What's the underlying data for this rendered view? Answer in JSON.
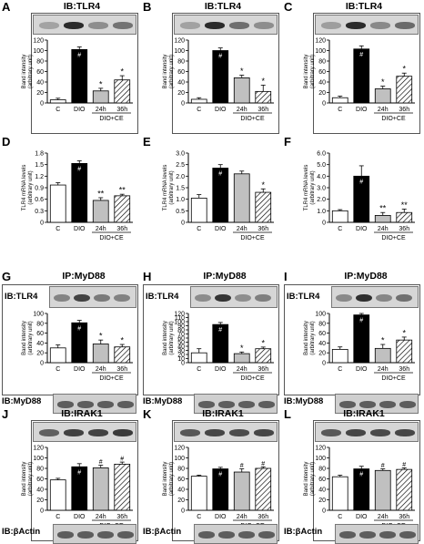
{
  "figure_labels": {
    "dio_ce": "DIO+CE",
    "ylabel_band": "Band intensity (arbitrary unit)",
    "ylabel_mrna": "TLR4 mRNA levels (arbitrary unit)",
    "ib_myd88": "IB:MyD88",
    "ib_bactin": "IB:βActin"
  },
  "colors": {
    "C": "#ffffff",
    "DIO": "#000000",
    "24h": "#c0c0c0",
    "36h": "hatched"
  },
  "chart_data": [
    {
      "panel": "A",
      "type": "bar",
      "title": "IB:TLR4",
      "categories": [
        "C",
        "DIO",
        "24h",
        "36h"
      ],
      "values": [
        6,
        102,
        23,
        44
      ],
      "errors": [
        3,
        5,
        5,
        8
      ],
      "marks": [
        "",
        "#",
        "*",
        "*"
      ],
      "ylim": [
        0,
        120
      ],
      "yticks": [
        0,
        20,
        40,
        60,
        80,
        100,
        120
      ],
      "ytick_labels": [
        "0",
        "20",
        "40",
        "60",
        "80",
        "100",
        "120"
      ],
      "ylabel": "Band intensity (arbitrary unit)"
    },
    {
      "panel": "B",
      "type": "bar",
      "title": "IB:TLR4",
      "categories": [
        "C",
        "DIO",
        "24h",
        "36h"
      ],
      "values": [
        7,
        100,
        48,
        22
      ],
      "errors": [
        3,
        5,
        5,
        12
      ],
      "marks": [
        "",
        "#",
        "*",
        "*"
      ],
      "ylim": [
        0,
        120
      ],
      "yticks": [
        0,
        20,
        40,
        60,
        80,
        100,
        120
      ],
      "ytick_labels": [
        "0",
        "20",
        "40",
        "60",
        "80",
        "100",
        "120"
      ],
      "ylabel": "Band intensity (arbitrary unit)"
    },
    {
      "panel": "C",
      "type": "bar",
      "title": "IB:TLR4",
      "categories": [
        "C",
        "DIO",
        "24h",
        "36h"
      ],
      "values": [
        10,
        103,
        27,
        51
      ],
      "errors": [
        3,
        6,
        5,
        6
      ],
      "marks": [
        "",
        "#",
        "*",
        "*"
      ],
      "ylim": [
        0,
        120
      ],
      "yticks": [
        0,
        20,
        40,
        60,
        80,
        100,
        120
      ],
      "ytick_labels": [
        "0",
        "20",
        "40",
        "60",
        "80",
        "100",
        "120"
      ],
      "ylabel": "Band intensity (arbitrary unit)"
    },
    {
      "panel": "D",
      "type": "bar",
      "title": "",
      "categories": [
        "C",
        "DIO",
        "24h",
        "36h"
      ],
      "values": [
        0.97,
        1.53,
        0.57,
        0.69
      ],
      "errors": [
        0.06,
        0.07,
        0.07,
        0.04
      ],
      "marks": [
        "",
        "#",
        "**",
        "**"
      ],
      "ylim": [
        0,
        1.8
      ],
      "yticks": [
        0,
        0.3,
        0.6,
        0.9,
        1.2,
        1.5,
        1.8
      ],
      "ytick_labels": [
        "0",
        "0.3",
        "0.6",
        "0.9",
        "1.2",
        "1.5",
        "1.8"
      ],
      "ylabel": "TLR4 mRNA levels (arbitrary unit)"
    },
    {
      "panel": "E",
      "type": "bar",
      "title": "",
      "categories": [
        "C",
        "DIO",
        "24h",
        "36h"
      ],
      "values": [
        1.05,
        2.35,
        2.1,
        1.3
      ],
      "errors": [
        0.15,
        0.15,
        0.12,
        0.15
      ],
      "marks": [
        "",
        "#",
        "",
        "*"
      ],
      "ylim": [
        0,
        3.0
      ],
      "yticks": [
        0,
        0.5,
        1.0,
        1.5,
        2.0,
        2.5,
        3.0
      ],
      "ytick_labels": [
        "0",
        "0.5",
        "1.0",
        "1.5",
        "2.0",
        "2.5",
        "3.0"
      ],
      "ylabel": "TLR4 mRNA levels (arbitrary unit)"
    },
    {
      "panel": "F",
      "type": "bar",
      "title": "",
      "categories": [
        "C",
        "DIO",
        "24h",
        "36h"
      ],
      "values": [
        1.0,
        4.0,
        0.6,
        0.85
      ],
      "errors": [
        0.1,
        0.9,
        0.25,
        0.3
      ],
      "marks": [
        "",
        "#",
        "**",
        "**"
      ],
      "ylim": [
        0,
        6.0
      ],
      "yticks": [
        0,
        1.0,
        2.0,
        3.0,
        4.0,
        5.0,
        6.0
      ],
      "ytick_labels": [
        "0",
        "1.0",
        "2.0",
        "3.0",
        "4.0",
        "5.0",
        "6.0"
      ],
      "ylabel": "TLR4 mRNA levels (arbitrary unit)"
    },
    {
      "panel": "G",
      "type": "bar",
      "title": "IP:MyD88",
      "inner": "IB:TLR4",
      "categories": [
        "C",
        "DIO",
        "24h",
        "36h"
      ],
      "values": [
        30,
        81,
        38,
        32
      ],
      "errors": [
        6,
        5,
        8,
        5
      ],
      "marks": [
        "",
        "#",
        "*",
        "*"
      ],
      "ylim": [
        0,
        100
      ],
      "yticks": [
        0,
        20,
        40,
        60,
        80,
        100
      ],
      "ytick_labels": [
        "0",
        "20",
        "40",
        "60",
        "80",
        "100"
      ],
      "ylabel": "Band intensity (arbitrary unit)",
      "bottom": "IB:MyD88"
    },
    {
      "panel": "H",
      "type": "bar",
      "title": "IP:MyD88",
      "inner": "IB:TLR4",
      "categories": [
        "C",
        "DIO",
        "24h",
        "36h"
      ],
      "values": [
        24,
        93,
        22,
        34
      ],
      "errors": [
        10,
        5,
        4,
        4
      ],
      "marks": [
        "",
        "#",
        "*",
        "*"
      ],
      "ylim": [
        0,
        120
      ],
      "yticks": [
        0,
        10,
        20,
        30,
        40,
        50,
        60,
        70,
        80,
        90,
        100,
        110,
        120
      ],
      "ytick_labels": [
        "0",
        "10",
        "20",
        "30",
        "40",
        "50",
        "60",
        "70",
        "80",
        "90",
        "100",
        "110",
        "120"
      ],
      "ylabel": "Band intensity (arbitrary unit)",
      "bottom": "IB:MyD88"
    },
    {
      "panel": "I",
      "type": "bar",
      "title": "IP:MyD88",
      "inner": "IB:TLR4",
      "categories": [
        "C",
        "DIO",
        "24h",
        "36h"
      ],
      "values": [
        27,
        97,
        29,
        46
      ],
      "errors": [
        5,
        3,
        8,
        6
      ],
      "marks": [
        "",
        "#",
        "*",
        "*"
      ],
      "ylim": [
        0,
        100
      ],
      "yticks": [
        0,
        20,
        40,
        60,
        80,
        100
      ],
      "ytick_labels": [
        "0",
        "20",
        "40",
        "60",
        "80",
        "100"
      ],
      "ylabel": "Band intensity (arbitrary unit)",
      "bottom": "IB:MyD88"
    },
    {
      "panel": "J",
      "type": "bar",
      "title": "IB:IRAK1",
      "categories": [
        "C",
        "DIO",
        "24h",
        "36h"
      ],
      "values": [
        58,
        83,
        81,
        88
      ],
      "errors": [
        3,
        6,
        5,
        4
      ],
      "marks": [
        "",
        "#",
        "#",
        "#"
      ],
      "ylim": [
        0,
        120
      ],
      "yticks": [
        0,
        20,
        40,
        60,
        80,
        100,
        120
      ],
      "ytick_labels": [
        "0",
        "20",
        "40",
        "60",
        "80",
        "100",
        "120"
      ],
      "ylabel": "Band intensity (arbitrary unit)",
      "bottom": "IB:βActin"
    },
    {
      "panel": "K",
      "type": "bar",
      "title": "IB:IRAK1",
      "categories": [
        "C",
        "DIO",
        "24h",
        "36h"
      ],
      "values": [
        65,
        79,
        73,
        80
      ],
      "errors": [
        2,
        3,
        6,
        3
      ],
      "marks": [
        "",
        "#",
        "#",
        "#"
      ],
      "ylim": [
        0,
        120
      ],
      "yticks": [
        0,
        20,
        40,
        60,
        80,
        100,
        120
      ],
      "ytick_labels": [
        "0",
        "20",
        "40",
        "60",
        "80",
        "100",
        "120"
      ],
      "ylabel": "Band intensity (arbitrary unit)",
      "bottom": "IB:βActin"
    },
    {
      "panel": "L",
      "type": "bar",
      "title": "IB:IRAK1",
      "categories": [
        "C",
        "DIO",
        "24h",
        "36h"
      ],
      "values": [
        64,
        79,
        76,
        78
      ],
      "errors": [
        3,
        5,
        3,
        3
      ],
      "marks": [
        "",
        "#",
        "#",
        "#"
      ],
      "ylim": [
        0,
        120
      ],
      "yticks": [
        0,
        20,
        40,
        60,
        80,
        100,
        120
      ],
      "ytick_labels": [
        "0",
        "20",
        "40",
        "60",
        "80",
        "100",
        "120"
      ],
      "ylabel": "Band intensity (arbitrary unit)",
      "bottom": "IB:βActin"
    }
  ]
}
